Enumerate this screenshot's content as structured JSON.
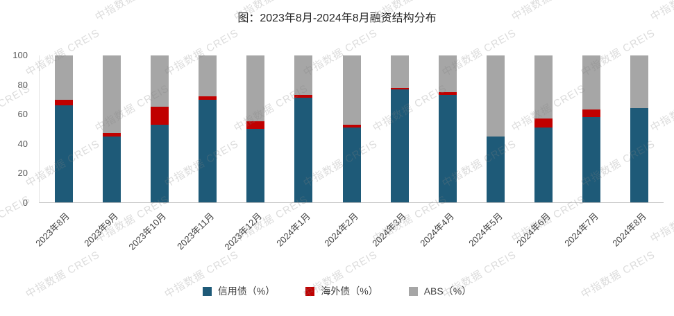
{
  "watermark": "中指数据 CREIS",
  "chart_data": {
    "type": "bar",
    "stacked": true,
    "stack_unit": "percent",
    "title": "图：2023年8月-2024年8月融资结构分布",
    "categories": [
      "2023年8月",
      "2023年9月",
      "2023年10月",
      "2023年11月",
      "2023年12月",
      "2024年1月",
      "2024年2月",
      "2024年3月",
      "2024年4月",
      "2024年5月",
      "2024年6月",
      "2024年7月",
      "2024年8月"
    ],
    "series": [
      {
        "name": "信用债（%）",
        "color": "#1E5A78",
        "values": [
          66,
          45,
          53,
          70,
          50,
          71,
          51,
          77,
          73,
          45,
          51,
          58,
          64
        ]
      },
      {
        "name": "海外债（%）",
        "color": "#C00000",
        "values": [
          4,
          2,
          12,
          2,
          5,
          2,
          2,
          1,
          2,
          0,
          6,
          5,
          0
        ]
      },
      {
        "name": "ABS（%）",
        "color": "#A6A6A6",
        "values": [
          30,
          53,
          35,
          28,
          45,
          27,
          47,
          22,
          25,
          55,
          43,
          37,
          36
        ]
      }
    ],
    "ylim": [
      0,
      100
    ],
    "yticks": [
      0,
      20,
      40,
      60,
      80,
      100
    ],
    "grid": false,
    "legend_position": "bottom"
  }
}
